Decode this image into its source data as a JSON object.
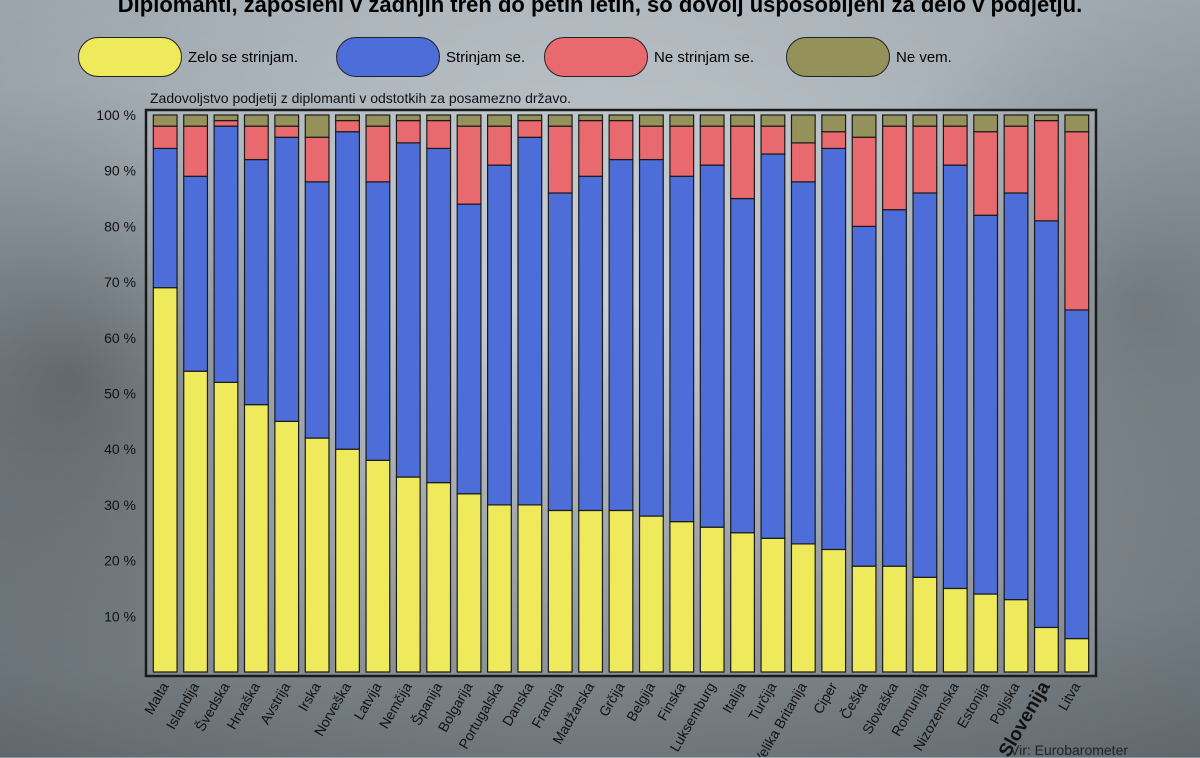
{
  "title": "Diplomanti, zaposleni v zadnjih treh do petih letih, so dovolj usposobljeni za delo v podjetju.",
  "subtitle": "Zadovoljstvo podjetij z diplomanti v odstotkih za posamezno državo.",
  "legend": [
    {
      "label": "Zelo se strinjam.",
      "color": "#eeea5c"
    },
    {
      "label": "Strinjam se.",
      "color": "#4d6ed8"
    },
    {
      "label": "Ne strinjam se.",
      "color": "#e96a6e"
    },
    {
      "label": "Ne vem.",
      "color": "#94915a"
    }
  ],
  "source": "Vir: Eurobarometer",
  "chart_data": {
    "type": "bar",
    "stacked": true,
    "title": "Diplomanti, zaposleni v zadnjih treh do petih letih, so dovolj usposobljeni za delo v podjetju.",
    "subtitle": "Zadovoljstvo podjetij z diplomanti v odstotkih za posamezno državo.",
    "ylim": [
      0,
      100
    ],
    "yticks": [
      "10 %",
      "20 %",
      "30 %",
      "40 %",
      "50 %",
      "60 %",
      "70 %",
      "80 %",
      "90 %",
      "100 %"
    ],
    "highlight": "Slovenija",
    "categories": [
      "Malta",
      "Islandija",
      "Švedska",
      "Hrvaška",
      "Avstrija",
      "Irska",
      "Norveška",
      "Latvija",
      "Nemčija",
      "Španija",
      "Bolgarija",
      "Portugalska",
      "Danska",
      "Francija",
      "Madžarska",
      "Grčija",
      "Belgija",
      "Finska",
      "Luksemburg",
      "Italija",
      "Turčija",
      "Velika Britanija",
      "Ciper",
      "Češka",
      "Slovaška",
      "Romunija",
      "Nizozemska",
      "Estonija",
      "Poljska",
      "Slovenija",
      "Litva"
    ],
    "series": [
      {
        "name": "Zelo se strinjam.",
        "color": "#eeea5c",
        "values": [
          69,
          54,
          52,
          48,
          45,
          42,
          40,
          38,
          35,
          34,
          32,
          30,
          30,
          29,
          29,
          29,
          28,
          27,
          26,
          25,
          24,
          23,
          22,
          19,
          19,
          17,
          15,
          14,
          13,
          8,
          6
        ]
      },
      {
        "name": "Strinjam se.",
        "color": "#4d6ed8",
        "values": [
          25,
          35,
          46,
          44,
          51,
          46,
          57,
          50,
          60,
          60,
          52,
          61,
          66,
          57,
          60,
          63,
          64,
          62,
          65,
          60,
          69,
          65,
          72,
          61,
          64,
          69,
          76,
          68,
          73,
          73,
          59
        ]
      },
      {
        "name": "Ne strinjam se.",
        "color": "#e96a6e",
        "values": [
          4,
          9,
          1,
          6,
          2,
          8,
          2,
          10,
          4,
          5,
          14,
          7,
          3,
          12,
          10,
          7,
          6,
          9,
          7,
          13,
          5,
          7,
          3,
          16,
          15,
          12,
          7,
          15,
          12,
          18,
          32
        ]
      },
      {
        "name": "Ne vem.",
        "color": "#94915a",
        "values": [
          2,
          2,
          1,
          2,
          2,
          4,
          1,
          2,
          1,
          1,
          2,
          2,
          1,
          2,
          1,
          1,
          2,
          2,
          2,
          2,
          2,
          5,
          3,
          4,
          2,
          2,
          2,
          3,
          2,
          1,
          3
        ]
      }
    ]
  }
}
